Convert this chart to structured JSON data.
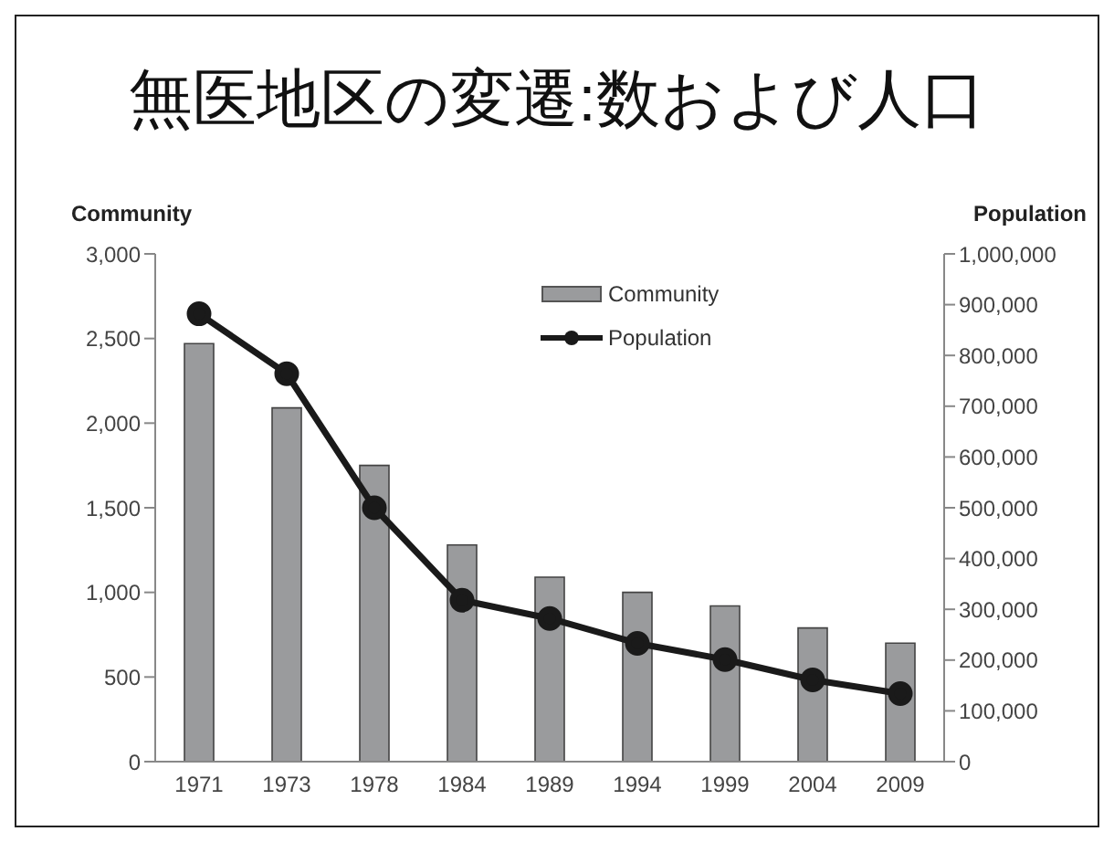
{
  "chart_data": {
    "type": "bar",
    "title": "無医地区の変遷:数および人口",
    "categories": [
      "1971",
      "1973",
      "1978",
      "1984",
      "1989",
      "1994",
      "1999",
      "2004",
      "2009"
    ],
    "series": [
      {
        "name": "Community",
        "color": "#9a9b9d",
        "values": [
          2470,
          2090,
          1750,
          1280,
          1090,
          1000,
          920,
          790,
          700
        ]
      },
      {
        "name": "Population",
        "type": "line",
        "axis": "y2",
        "color": "#1a1a1a",
        "values": [
          882000,
          764000,
          500000,
          318000,
          282000,
          233000,
          201000,
          161000,
          134000
        ]
      }
    ],
    "ylabel": "Community",
    "y2label": "Population",
    "ylim": [
      0,
      3000
    ],
    "yticks": [
      0,
      {
        "value": 500,
        "label": "500"
      },
      {
        "value": 1000,
        "label": "1,000"
      },
      {
        "value": 1500,
        "label": "1,500"
      },
      {
        "value": 2000,
        "label": "2,000"
      },
      {
        "value": 2500,
        "label": "2,500"
      },
      {
        "value": 3000,
        "label": "3,000"
      }
    ],
    "y2lim": [
      0,
      1000000
    ],
    "y2ticks": [
      0,
      {
        "value": 100000,
        "label": "100,000"
      },
      {
        "value": 200000,
        "label": "200,000"
      },
      {
        "value": 300000,
        "label": "300,000"
      },
      {
        "value": 400000,
        "label": "400,000"
      },
      {
        "value": 500000,
        "label": "500,000"
      },
      {
        "value": 600000,
        "label": "600,000"
      },
      {
        "value": 700000,
        "label": "700,000"
      },
      {
        "value": 800000,
        "label": "800,000"
      },
      {
        "value": 900000,
        "label": "900,000"
      },
      {
        "value": 1000000,
        "label": "1,000,000"
      }
    ],
    "legend": "top",
    "marker": "circle",
    "grid": false
  }
}
